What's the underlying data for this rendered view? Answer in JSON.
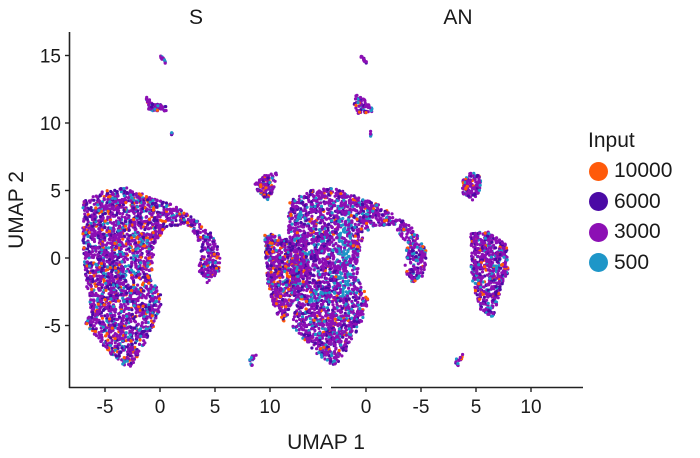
{
  "chart_data": {
    "type": "scatter",
    "title": "",
    "xlabel": "UMAP 1",
    "ylabel": "UMAP 2",
    "facets": [
      {
        "label": "S",
        "xticks": [
          "-5",
          "0",
          "5",
          "10"
        ],
        "xtick_values": [
          -5,
          0,
          5,
          10
        ]
      },
      {
        "label": "AN",
        "xticks": [
          "0",
          "-5",
          "5",
          "10"
        ],
        "xtick_values": [
          0,
          -5,
          5,
          10
        ]
      }
    ],
    "xlim": [
      -8.5,
      14.5
    ],
    "ylim": [
      -9.5,
      16.8
    ],
    "yticks": [
      "15",
      "10",
      "5",
      "0",
      "-5"
    ],
    "ytick_values": [
      15,
      10,
      5,
      0,
      -5
    ],
    "grid": false,
    "legend": {
      "title": "Input",
      "position": "right",
      "entries": [
        {
          "label": "10000",
          "color": "#FF5A0A"
        },
        {
          "label": "6000",
          "color": "#4B0AA5"
        },
        {
          "label": "3000",
          "color": "#8C0FB4"
        },
        {
          "label": "500",
          "color": "#1E96C8"
        }
      ]
    },
    "clusters": [
      {
        "name": "main-body",
        "approx_x": [
          -7,
          0.5
        ],
        "approx_y": [
          -8.5,
          5.2
        ]
      },
      {
        "name": "arc",
        "approx_x": [
          0,
          5.5
        ],
        "approx_y": [
          -1.8,
          4
        ]
      },
      {
        "name": "right-mid",
        "approx_x": [
          9.5,
          13.5
        ],
        "approx_y": [
          -4.8,
          2
        ]
      },
      {
        "name": "right-top",
        "approx_x": [
          8.5,
          10.7
        ],
        "approx_y": [
          4.2,
          7
        ]
      },
      {
        "name": "small-top",
        "approx_x": [
          -1.5,
          0.8
        ],
        "approx_y": [
          10.8,
          12.2
        ]
      },
      {
        "name": "tiny-top",
        "approx_x": [
          0.2,
          0.5
        ],
        "approx_y": [
          14.4,
          15
        ]
      },
      {
        "name": "tiny-dot",
        "approx_x": [
          1.1,
          1.1
        ],
        "approx_y": [
          9.2,
          9.2
        ]
      },
      {
        "name": "tiny-bottom",
        "approx_x": [
          8.2,
          8.9
        ],
        "approx_y": [
          -8,
          -7.2
        ]
      }
    ]
  },
  "page": {
    "facet_s": "S",
    "facet_an": "AN",
    "x_axis_title": "UMAP 1",
    "y_axis_title": "UMAP 2",
    "legend_title": "Input"
  }
}
